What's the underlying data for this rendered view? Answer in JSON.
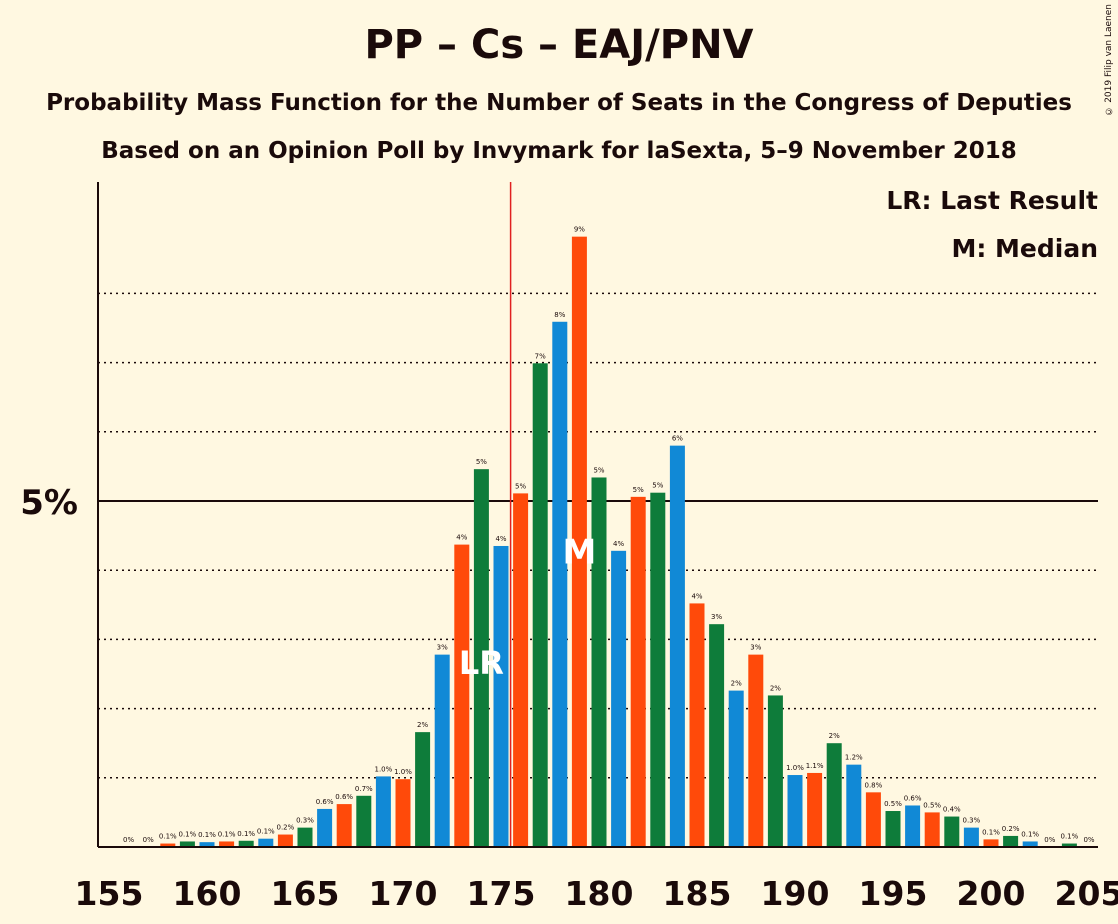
{
  "title": "PP – Cs – EAJ/PNV",
  "subtitle1": "Probability Mass Function for the Number of Seats in the Congress of Deputies",
  "subtitle2": "Based on an Opinion Poll by Invymark for laSexta, 5–9 November 2018",
  "copyright": "© 2019 Filip van Laenen",
  "legend": {
    "lr": "LR: Last Result",
    "m": "M: Median"
  },
  "colors": {
    "green": "#0e7c3a",
    "blue": "#1189d6",
    "orange": "#ff4a0a",
    "background": "#fff8e1",
    "text": "#1a0a0a",
    "last_result_line": "#e02020"
  },
  "chart_data": {
    "type": "bar",
    "x": [
      156,
      157,
      158,
      159,
      160,
      161,
      162,
      163,
      164,
      165,
      166,
      167,
      168,
      169,
      170,
      171,
      172,
      173,
      174,
      175,
      176,
      177,
      178,
      179,
      180,
      181,
      182,
      183,
      184,
      185,
      186,
      187,
      188,
      189,
      190,
      191,
      192,
      193,
      194,
      195,
      196,
      197,
      198,
      199,
      200,
      201,
      202,
      203,
      204,
      205
    ],
    "values": [
      0.0,
      0.0,
      0.05,
      0.08,
      0.07,
      0.08,
      0.09,
      0.12,
      0.18,
      0.28,
      0.55,
      0.62,
      0.74,
      1.02,
      0.98,
      1.66,
      2.78,
      4.37,
      5.46,
      4.35,
      5.11,
      6.99,
      7.59,
      8.82,
      5.34,
      4.28,
      5.06,
      5.12,
      5.8,
      3.52,
      3.22,
      2.26,
      2.78,
      2.19,
      1.04,
      1.07,
      1.5,
      1.19,
      0.79,
      0.52,
      0.6,
      0.5,
      0.44,
      0.28,
      0.11,
      0.16,
      0.08,
      0.0,
      0.05,
      0.0
    ],
    "labels": [
      "0%",
      "0%",
      "0.1%",
      "0.1%",
      "0.1%",
      "0.1%",
      "0.1%",
      "0.1%",
      "0.2%",
      "0.3%",
      "0.6%",
      "0.6%",
      "0.7%",
      "1.0%",
      "1.0%",
      "2%",
      "3%",
      "4%",
      "5%",
      "4%",
      "5%",
      "7%",
      "8%",
      "9%",
      "5%",
      "4%",
      "5%",
      "5%",
      "6%",
      "4%",
      "3%",
      "2%",
      "3%",
      "2%",
      "1.0%",
      "1.1%",
      "2%",
      "1.2%",
      "0.8%",
      "0.5%",
      "0.6%",
      "0.5%",
      "0.4%",
      "0.3%",
      "0.1%",
      "0.2%",
      "0.1%",
      "0%",
      "0.1%",
      "0%"
    ],
    "colors": [
      "green",
      "blue",
      "orange",
      "green",
      "blue",
      "orange",
      "green",
      "blue",
      "orange",
      "green",
      "blue",
      "orange",
      "green",
      "blue",
      "orange",
      "green",
      "blue",
      "orange",
      "green",
      "blue",
      "orange",
      "green",
      "blue",
      "orange",
      "green",
      "blue",
      "orange",
      "green",
      "blue",
      "orange",
      "green",
      "blue",
      "orange",
      "green",
      "blue",
      "orange",
      "green",
      "blue",
      "orange",
      "green",
      "blue",
      "orange",
      "green",
      "blue",
      "orange",
      "green",
      "blue",
      "orange",
      "green",
      "blue"
    ],
    "xticks": [
      "155",
      "160",
      "165",
      "170",
      "175",
      "180",
      "185",
      "190",
      "195",
      "200",
      "205"
    ],
    "xtick_values": [
      155,
      160,
      165,
      170,
      175,
      180,
      185,
      190,
      195,
      200,
      205
    ],
    "ytick_label": "5%",
    "ytick_value": 5,
    "gridlines": [
      1,
      2,
      3,
      4,
      6,
      7,
      8
    ],
    "ylim": [
      0,
      9.6
    ],
    "xlim": [
      155,
      205
    ],
    "last_result": 176,
    "median": 179,
    "lr_marker_x": 174,
    "lr_marker_y": 2.7,
    "lr_text": "LR",
    "median_marker_y": 4.3,
    "median_text": "M"
  }
}
